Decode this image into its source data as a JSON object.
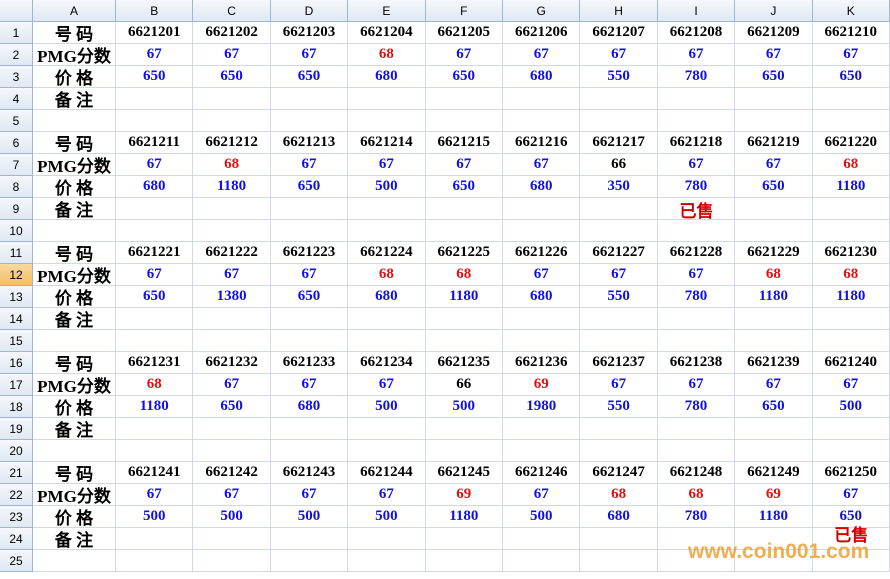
{
  "column_headers": [
    "A",
    "B",
    "C",
    "D",
    "E",
    "F",
    "G",
    "H",
    "I",
    "J",
    "K"
  ],
  "row_numbers": [
    1,
    2,
    3,
    4,
    5,
    6,
    7,
    8,
    9,
    10,
    11,
    12,
    13,
    14,
    15,
    16,
    17,
    18,
    19,
    20,
    21,
    22,
    23,
    24,
    25
  ],
  "selected_row": 12,
  "row_labels": [
    "号 码",
    "PMG分数",
    "价 格",
    "备 注"
  ],
  "text_color": "#000000",
  "price_color": "#1010e0",
  "note_color": "#d00000",
  "blocks": [
    {
      "codes": [
        6621201,
        6621202,
        6621203,
        6621204,
        6621205,
        6621206,
        6621207,
        6621208,
        6621209,
        6621210
      ],
      "scores": [
        67,
        67,
        67,
        68,
        67,
        67,
        67,
        67,
        67,
        67
      ],
      "score_colors": [
        "#1010e0",
        "#1010e0",
        "#1010e0",
        "#e01010",
        "#1010e0",
        "#1010e0",
        "#1010e0",
        "#1010e0",
        "#1010e0",
        "#1010e0"
      ],
      "prices": [
        650,
        650,
        650,
        680,
        650,
        680,
        550,
        780,
        650,
        650
      ],
      "notes": [
        null,
        null,
        null,
        null,
        null,
        null,
        null,
        null,
        null,
        null
      ]
    },
    {
      "codes": [
        6621211,
        6621212,
        6621213,
        6621214,
        6621215,
        6621216,
        6621217,
        6621218,
        6621219,
        6621220
      ],
      "scores": [
        67,
        68,
        67,
        67,
        67,
        67,
        66,
        67,
        67,
        68
      ],
      "score_colors": [
        "#1010e0",
        "#e01010",
        "#1010e0",
        "#1010e0",
        "#1010e0",
        "#1010e0",
        "#000000",
        "#1010e0",
        "#1010e0",
        "#e01010"
      ],
      "prices": [
        680,
        1180,
        650,
        500,
        650,
        680,
        350,
        780,
        650,
        1180
      ],
      "notes": [
        null,
        null,
        null,
        null,
        null,
        null,
        null,
        "已售",
        null,
        null
      ]
    },
    {
      "codes": [
        6621221,
        6621222,
        6621223,
        6621224,
        6621225,
        6621226,
        6621227,
        6621228,
        6621229,
        6621230
      ],
      "scores": [
        67,
        67,
        67,
        68,
        68,
        67,
        67,
        67,
        68,
        68
      ],
      "score_colors": [
        "#1010e0",
        "#1010e0",
        "#1010e0",
        "#e01010",
        "#e01010",
        "#1010e0",
        "#1010e0",
        "#1010e0",
        "#e01010",
        "#e01010"
      ],
      "prices": [
        650,
        1380,
        650,
        680,
        1180,
        680,
        550,
        780,
        1180,
        1180
      ],
      "notes": [
        null,
        null,
        null,
        null,
        null,
        null,
        null,
        null,
        null,
        null
      ]
    },
    {
      "codes": [
        6621231,
        6621232,
        6621233,
        6621234,
        6621235,
        6621236,
        6621237,
        6621238,
        6621239,
        6621240
      ],
      "scores": [
        68,
        67,
        67,
        67,
        66,
        69,
        67,
        67,
        67,
        67
      ],
      "score_colors": [
        "#e01010",
        "#1010e0",
        "#1010e0",
        "#1010e0",
        "#000000",
        "#e01010",
        "#1010e0",
        "#1010e0",
        "#1010e0",
        "#1010e0"
      ],
      "prices": [
        1180,
        650,
        680,
        500,
        500,
        1980,
        550,
        780,
        650,
        500
      ],
      "notes": [
        null,
        null,
        null,
        null,
        null,
        null,
        null,
        null,
        null,
        null
      ]
    },
    {
      "codes": [
        6621241,
        6621242,
        6621243,
        6621244,
        6621245,
        6621246,
        6621247,
        6621248,
        6621249,
        6621250
      ],
      "scores": [
        67,
        67,
        67,
        67,
        69,
        67,
        68,
        68,
        69,
        67
      ],
      "score_colors": [
        "#1010e0",
        "#1010e0",
        "#1010e0",
        "#1010e0",
        "#e01010",
        "#1010e0",
        "#e01010",
        "#e01010",
        "#e01010",
        "#1010e0"
      ],
      "prices": [
        500,
        500,
        500,
        500,
        1180,
        500,
        680,
        780,
        1180,
        650
      ],
      "notes": [
        null,
        null,
        null,
        null,
        null,
        null,
        null,
        null,
        null,
        "已售"
      ]
    }
  ],
  "watermark": "www.coin001.com"
}
